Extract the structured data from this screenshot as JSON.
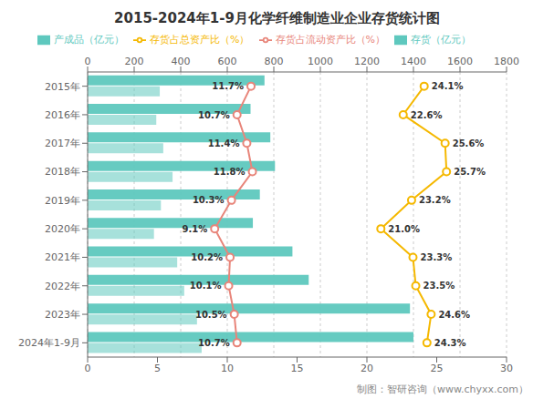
{
  "chart_data": {
    "type": "bar",
    "orientation": "horizontal",
    "title": "2015-2024年1-9月化学纤维制造业企业存货统计图",
    "categories": [
      "2015年",
      "2016年",
      "2017年",
      "2018年",
      "2019年",
      "2020年",
      "2021年",
      "2022年",
      "2023年",
      "2024年1-9月"
    ],
    "xlim": [
      0,
      1800
    ],
    "xticks": [
      0,
      200,
      400,
      600,
      800,
      1000,
      1200,
      1400,
      1600,
      1800
    ],
    "y2lim": [
      0,
      30
    ],
    "y2ticks": [
      0,
      5,
      10,
      15,
      20,
      25,
      30
    ],
    "grid": true,
    "legend": "top",
    "annotations": [
      "制图：智研咨询（www.chyxx.com）"
    ],
    "series": [
      {
        "name": "存货（亿元）",
        "type": "bar",
        "color": "#5EC8BE",
        "values": [
          760,
          700,
          785,
          805,
          740,
          710,
          880,
          950,
          1385,
          1400
        ]
      },
      {
        "name": "产成品（亿元）",
        "type": "bar",
        "color": "#5EC8BE",
        "values": [
          310,
          295,
          325,
          365,
          315,
          285,
          385,
          415,
          470,
          490
        ]
      },
      {
        "name": "存货占流动资产比（%）",
        "type": "line",
        "axis": "y2",
        "color": "#E8857A",
        "marker": "circle",
        "data_labels": true,
        "values": [
          11.7,
          10.7,
          11.4,
          11.8,
          10.3,
          9.1,
          10.2,
          10.1,
          10.5,
          10.7
        ],
        "value_labels": [
          "11.7%",
          "10.7%",
          "11.4%",
          "11.8%",
          "10.3%",
          "9.1%",
          "10.2%",
          "10.1%",
          "10.5%",
          "10.7%"
        ]
      },
      {
        "name": "存货占总资产比（%）",
        "type": "line",
        "axis": "y2",
        "color": "#F5B800",
        "marker": "circle",
        "data_labels": true,
        "values": [
          24.1,
          22.6,
          25.6,
          25.7,
          23.2,
          21.0,
          23.3,
          23.5,
          24.6,
          24.3
        ],
        "value_labels": [
          "24.1%",
          "22.6%",
          "25.6%",
          "25.7%",
          "23.2%",
          "21.0%",
          "23.3%",
          "23.5%",
          "24.6%",
          "24.3%"
        ]
      }
    ]
  }
}
